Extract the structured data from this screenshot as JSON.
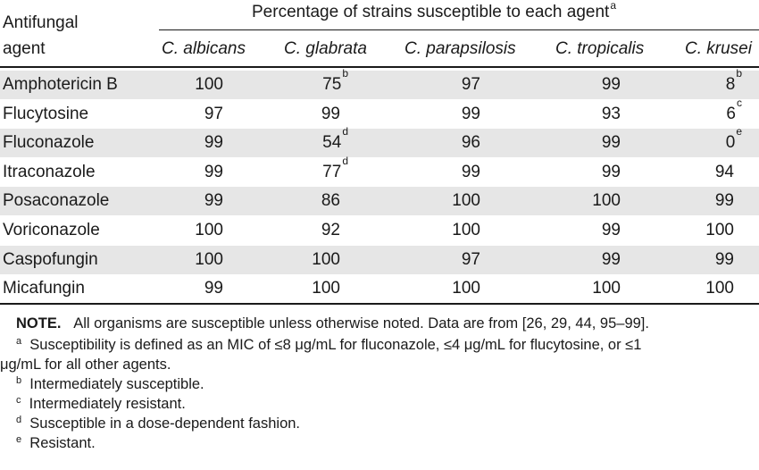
{
  "header": {
    "agent_label_line1": "Antifungal",
    "agent_label_line2": "agent",
    "group_label": "Percentage of strains susceptible to each agent",
    "group_footnote": "a",
    "columns": [
      "C. albicans",
      "C. glabrata",
      "C. parapsilosis",
      "C. tropicalis",
      "C. krusei"
    ]
  },
  "rows": [
    {
      "agent": "Amphotericin B",
      "values": [
        "100",
        "75",
        "97",
        "99",
        "8"
      ],
      "notes": [
        "",
        "b",
        "",
        "",
        "b"
      ]
    },
    {
      "agent": "Flucytosine",
      "values": [
        "97",
        "99",
        "99",
        "93",
        "6"
      ],
      "notes": [
        "",
        "",
        "",
        "",
        "c"
      ]
    },
    {
      "agent": "Fluconazole",
      "values": [
        "99",
        "54",
        "96",
        "99",
        "0"
      ],
      "notes": [
        "",
        "d",
        "",
        "",
        "e"
      ]
    },
    {
      "agent": "Itraconazole",
      "values": [
        "99",
        "77",
        "99",
        "99",
        "94"
      ],
      "notes": [
        "",
        "d",
        "",
        "",
        ""
      ]
    },
    {
      "agent": "Posaconazole",
      "values": [
        "99",
        "86",
        "100",
        "100",
        "99"
      ],
      "notes": [
        "",
        "",
        "",
        "",
        ""
      ]
    },
    {
      "agent": "Voriconazole",
      "values": [
        "100",
        "92",
        "100",
        "99",
        "100"
      ],
      "notes": [
        "",
        "",
        "",
        "",
        ""
      ]
    },
    {
      "agent": "Caspofungin",
      "values": [
        "100",
        "100",
        "97",
        "99",
        "99"
      ],
      "notes": [
        "",
        "",
        "",
        "",
        ""
      ]
    },
    {
      "agent": "Micafungin",
      "values": [
        "99",
        "100",
        "100",
        "100",
        "100"
      ],
      "notes": [
        "",
        "",
        "",
        "",
        ""
      ]
    }
  ],
  "notes": {
    "note_key": "NOTE.",
    "note_text": "All organisms are susceptible unless otherwise noted. Data are from [26, 29, 44, 95–99].",
    "footnotes": [
      {
        "mark": "a",
        "text": "Susceptibility is defined as an MIC of ≤8 μg/mL for fluconazole, ≤4 μg/mL for flucytosine, or ≤1"
      },
      {
        "mark": "",
        "text": "μg/mL for all other agents."
      },
      {
        "mark": "b",
        "text": "Intermediately susceptible."
      },
      {
        "mark": "c",
        "text": "Intermediately resistant."
      },
      {
        "mark": "d",
        "text": "Susceptible in a dose-dependent fashion."
      },
      {
        "mark": "e",
        "text": "Resistant."
      }
    ]
  }
}
